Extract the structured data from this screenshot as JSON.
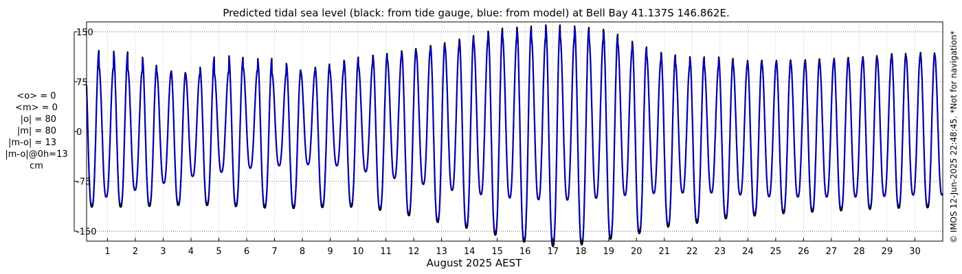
{
  "figure": {
    "title": "Predicted tidal sea level (black: from tide gauge, blue: from model) at Bell Bay 41.137S 146.862E.",
    "credit": "© IMOS 12-Jun-2025 22:48:45. *Not for navigation*",
    "stats": [
      "<o> = 0",
      "<m> = 0",
      "|o| = 80",
      "|m| = 80",
      "|m-o| = 13",
      "|m-o|@0h=13",
      "cm"
    ],
    "colors": {
      "gauge": "#000000",
      "model": "#0000cc",
      "grid": "#555555",
      "axis": "#000000"
    }
  },
  "chart_data": {
    "type": "line",
    "title": "Predicted tidal sea level (black: from tide gauge, blue: from model) at Bell Bay 41.137S 146.862E.",
    "xlabel": "August 2025 AEST",
    "ylabel": "",
    "units": "cm",
    "xlim": [
      0.25,
      31.0
    ],
    "ylim": [
      -165,
      165
    ],
    "yticks": [
      150,
      75,
      0,
      -75,
      -150
    ],
    "ytick_labels": [
      "150",
      "75",
      "0",
      "-75",
      "-150"
    ],
    "xticks": [
      1,
      2,
      3,
      4,
      5,
      6,
      7,
      8,
      9,
      10,
      11,
      12,
      13,
      14,
      15,
      16,
      17,
      18,
      19,
      20,
      21,
      22,
      23,
      24,
      25,
      26,
      27,
      28,
      29,
      30
    ],
    "xtick_labels": [
      "1",
      "2",
      "3",
      "4",
      "5",
      "6",
      "7",
      "8",
      "9",
      "10",
      "11",
      "12",
      "13",
      "14",
      "15",
      "16",
      "17",
      "18",
      "19",
      "20",
      "21",
      "22",
      "23",
      "24",
      "25",
      "26",
      "27",
      "28",
      "29",
      "30"
    ],
    "grid": true,
    "series": [
      {
        "color": "#000000",
        "x": [],
        "y": []
      },
      {
        "color": "#0000cc",
        "x": [],
        "y": []
      }
    ],
    "daily_extremes": {
      "day": [
        1,
        2,
        3,
        4,
        5,
        6,
        7,
        8,
        9,
        10,
        11,
        12,
        13,
        14,
        15,
        16,
        17,
        18,
        19,
        20,
        21,
        22,
        23,
        24,
        25,
        26,
        27,
        28,
        29,
        30
      ],
      "higher_high": [
        120,
        117,
        92,
        86,
        115,
        109,
        108,
        90,
        100,
        110,
        115,
        122,
        130,
        140,
        152,
        155,
        158,
        155,
        150,
        130,
        115,
        110,
        110,
        105,
        105,
        106,
        108,
        110,
        115,
        117
      ],
      "higher_low": [
        -98,
        -88,
        -78,
        -68,
        -62,
        -56,
        -52,
        -50,
        -50,
        -58,
        -68,
        -76,
        -86,
        -92,
        -98,
        -101,
        -103,
        -102,
        -98,
        -94,
        -92,
        -92,
        -92,
        -96,
        -98,
        -98,
        -98,
        -98,
        -97,
        -95
      ],
      "lower_high": [
        95,
        90,
        88,
        85,
        85,
        95,
        85,
        88,
        92,
        96,
        106,
        118,
        125,
        130,
        140,
        140,
        140,
        140,
        135,
        118,
        104,
        97,
        97,
        100,
        102,
        103,
        104,
        106,
        110,
        113
      ],
      "lower_low": [
        -110,
        -110,
        -108,
        -107,
        -108,
        -110,
        -112,
        -112,
        -110,
        -110,
        -116,
        -124,
        -134,
        -142,
        -152,
        -162,
        -168,
        -166,
        -158,
        -150,
        -140,
        -135,
        -128,
        -124,
        -120,
        -118,
        -116,
        -114,
        -112,
        -111
      ]
    }
  }
}
